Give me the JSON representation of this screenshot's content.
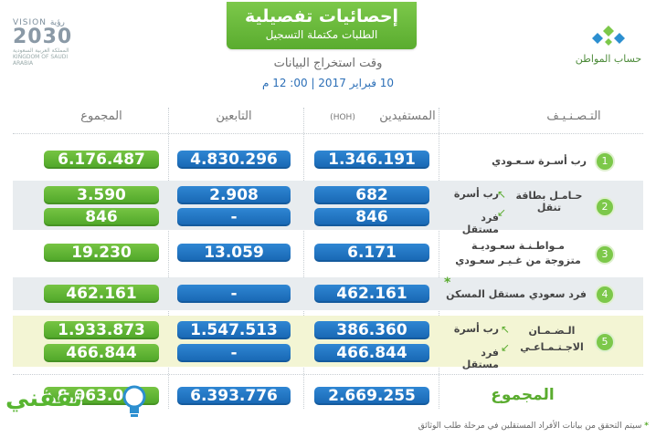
{
  "header": {
    "title": "إحصائيات تفصيلية",
    "subtitle": "الطلبات مكتملة التسجيل",
    "extract_time_label": "وقت استخراج البيانات",
    "datetime": "10 فبراير 2017 | 00: 12 م"
  },
  "logo_left": {
    "vision": "VISION رؤية",
    "year": "2030",
    "country": "المملكة العربية السعودية KINGDOM OF SAUDI ARABIA"
  },
  "logo_right": {
    "label": "حساب المواطن"
  },
  "columns": {
    "category": "التـصـنـيـف",
    "beneficiaries": "المستفيدين",
    "hoh": "(HOH)",
    "dependents": "التابعين",
    "total": "المجموع"
  },
  "rows": [
    {
      "num": "1",
      "label": "رب أسـرة سـعـودي",
      "beneficiaries": "1.346.191",
      "dependents": "4.830.296",
      "total": "6.176.487"
    },
    {
      "num": "2",
      "label": "حـامـل بطاقة تنقل",
      "sub_a": "رب أسرة",
      "sub_b": "فرد مستقل",
      "a_beneficiaries": "682",
      "a_dependents": "2.908",
      "a_total": "3.590",
      "b_beneficiaries": "846",
      "b_dependents": "-",
      "b_total": "846"
    },
    {
      "num": "3",
      "label_1": "مـواطـنـة سعـوديـة",
      "label_2": "متزوجة من غـيـر سعـودي",
      "beneficiaries": "6.171",
      "dependents": "13.059",
      "total": "19.230"
    },
    {
      "num": "4",
      "label": "فرد سعودي مستقل المسكن",
      "star": "*",
      "beneficiaries": "462.161",
      "dependents": "-",
      "total": "462.161"
    },
    {
      "num": "5",
      "label_1": "الـضـمـان",
      "label_2": "الاجـتـمـاعـي",
      "sub_a": "رب أسرة",
      "sub_b": "فرد مستقل",
      "a_beneficiaries": "386.360",
      "a_dependents": "1.547.513",
      "a_total": "1.933.873",
      "b_beneficiaries": "466.844",
      "b_dependents": "-",
      "b_total": "466.844"
    }
  ],
  "totals": {
    "label": "المجموع",
    "beneficiaries": "2.669.255",
    "dependents": "6.393.776",
    "total": "9.063.031"
  },
  "footnote": {
    "star": "*",
    "text": "سيتم التحقق من بيانات الأفراد المستقلين في مرحلة طلب الوثائق"
  },
  "watermark": {
    "text": "ثقفني"
  },
  "colors": {
    "green": "#5aac2f",
    "blue": "#1766b2",
    "gray_row": "#e8ecef",
    "yellow_row": "#f3f5d4"
  }
}
